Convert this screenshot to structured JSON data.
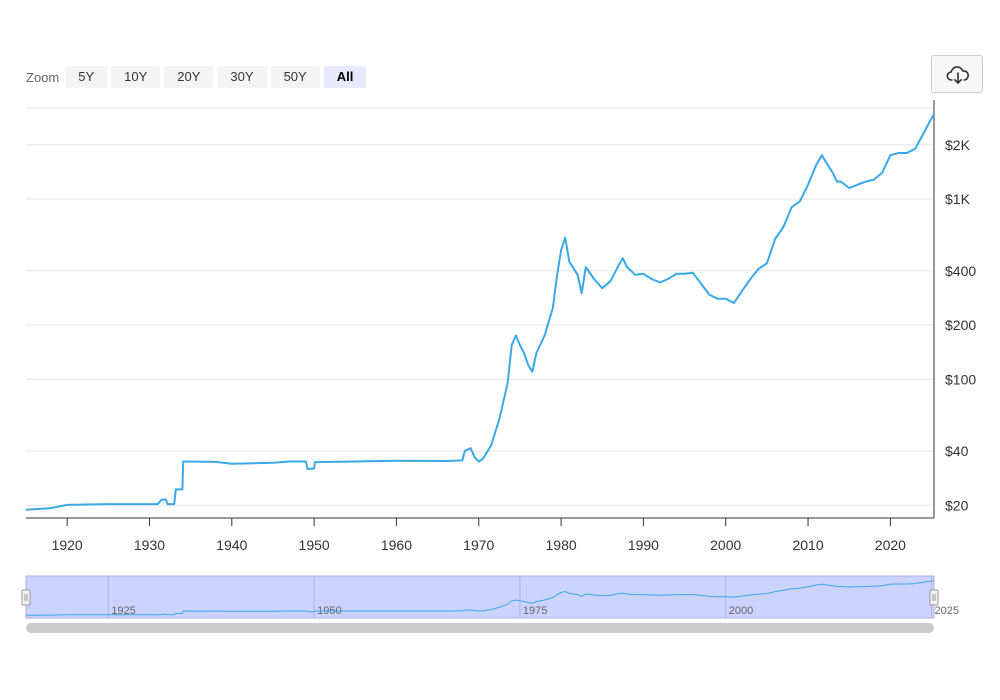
{
  "zoom": {
    "label": "Zoom",
    "buttons": [
      "5Y",
      "10Y",
      "20Y",
      "30Y",
      "50Y",
      "All"
    ],
    "active": "All"
  },
  "download": {
    "icon": "cloud-download-icon"
  },
  "colors": {
    "line": "#3aa9e8",
    "navigator_fill": "#ccd3ff",
    "scrollbar": "#cccccc"
  },
  "chart_data": {
    "type": "line",
    "title": "",
    "xlabel": "",
    "ylabel": "",
    "x_scale": "time",
    "y_scale": "log",
    "xlim": [
      1915,
      2025.3
    ],
    "ylim": [
      17,
      3200
    ],
    "x_ticks": [
      1920,
      1930,
      1940,
      1950,
      1960,
      1970,
      1980,
      1990,
      2000,
      2010,
      2020
    ],
    "x_tick_labels": [
      "1920",
      "1930",
      "1940",
      "1950",
      "1960",
      "1970",
      "1980",
      "1990",
      "2000",
      "2010",
      "2020"
    ],
    "y_ticks": [
      20,
      40,
      100,
      200,
      400,
      1000,
      2000
    ],
    "y_tick_labels": [
      "$20",
      "$40",
      "$100",
      "$200",
      "$400",
      "$1K",
      "$2K"
    ],
    "grid": true,
    "series": [
      {
        "values": [
          [
            1915,
            18.9
          ],
          [
            1918,
            19.3
          ],
          [
            1920,
            20.1
          ],
          [
            1925,
            20.3
          ],
          [
            1931,
            20.3
          ],
          [
            1931.5,
            21.5
          ],
          [
            1932,
            21.5
          ],
          [
            1932.2,
            20.3
          ],
          [
            1933,
            20.3
          ],
          [
            1933.2,
            24.5
          ],
          [
            1934,
            24.5
          ],
          [
            1934.1,
            35
          ],
          [
            1938,
            34.8
          ],
          [
            1940,
            34
          ],
          [
            1945,
            34.4
          ],
          [
            1947,
            35
          ],
          [
            1949,
            35
          ],
          [
            1949.2,
            31.8
          ],
          [
            1950,
            32
          ],
          [
            1950.1,
            34.7
          ],
          [
            1955,
            35
          ],
          [
            1960,
            35.3
          ],
          [
            1966,
            35.2
          ],
          [
            1968,
            35.5
          ],
          [
            1968.3,
            40
          ],
          [
            1969,
            41.5
          ],
          [
            1969.5,
            37
          ],
          [
            1970,
            35
          ],
          [
            1970.5,
            36.2
          ],
          [
            1971.5,
            43
          ],
          [
            1972.5,
            60
          ],
          [
            1973.5,
            95
          ],
          [
            1974,
            155
          ],
          [
            1974.5,
            175
          ],
          [
            1975,
            155
          ],
          [
            1975.5,
            140
          ],
          [
            1976,
            120
          ],
          [
            1976.5,
            110
          ],
          [
            1977,
            140
          ],
          [
            1978,
            175
          ],
          [
            1979,
            250
          ],
          [
            1979.5,
            375
          ],
          [
            1980,
            520
          ],
          [
            1980.5,
            610
          ],
          [
            1981,
            450
          ],
          [
            1982,
            380
          ],
          [
            1982.5,
            300
          ],
          [
            1983,
            420
          ],
          [
            1984,
            360
          ],
          [
            1985,
            320
          ],
          [
            1986,
            350
          ],
          [
            1987,
            430
          ],
          [
            1987.5,
            470
          ],
          [
            1988,
            420
          ],
          [
            1989,
            380
          ],
          [
            1990,
            385
          ],
          [
            1991,
            360
          ],
          [
            1992,
            345
          ],
          [
            1993,
            360
          ],
          [
            1994,
            385
          ],
          [
            1995,
            385
          ],
          [
            1996,
            390
          ],
          [
            1997,
            340
          ],
          [
            1998,
            295
          ],
          [
            1999,
            280
          ],
          [
            2000,
            280
          ],
          [
            2001,
            265
          ],
          [
            2002,
            310
          ],
          [
            2003,
            360
          ],
          [
            2004,
            410
          ],
          [
            2005,
            440
          ],
          [
            2006,
            600
          ],
          [
            2007,
            700
          ],
          [
            2008,
            900
          ],
          [
            2009,
            970
          ],
          [
            2010,
            1200
          ],
          [
            2011,
            1550
          ],
          [
            2011.7,
            1750
          ],
          [
            2012,
            1650
          ],
          [
            2013,
            1400
          ],
          [
            2013.5,
            1250
          ],
          [
            2014,
            1250
          ],
          [
            2015,
            1150
          ],
          [
            2016,
            1200
          ],
          [
            2017,
            1250
          ],
          [
            2018,
            1280
          ],
          [
            2019,
            1400
          ],
          [
            2020,
            1750
          ],
          [
            2021,
            1800
          ],
          [
            2022,
            1800
          ],
          [
            2023,
            1900
          ],
          [
            2024,
            2300
          ],
          [
            2024.8,
            2700
          ],
          [
            2025.3,
            2950
          ]
        ]
      }
    ],
    "navigator": {
      "labels": [
        "1925",
        "1950",
        "1975",
        "2000",
        "2025"
      ],
      "label_years": [
        1925,
        1950,
        1975,
        2000,
        2025
      ]
    }
  }
}
